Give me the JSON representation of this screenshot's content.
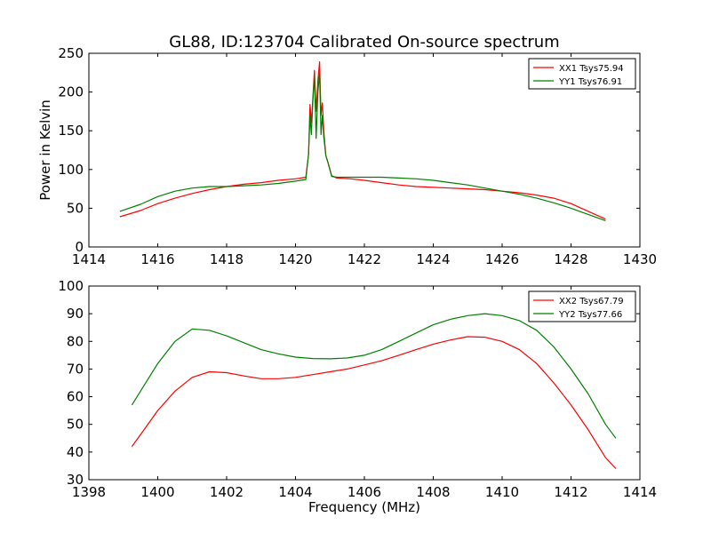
{
  "title": "GL88, ID:123704 Calibrated On-source spectrum",
  "chart_data": [
    {
      "type": "line",
      "xlabel": "",
      "ylabel": "Power in Kelvin",
      "xlim": [
        1414,
        1430
      ],
      "ylim": [
        0,
        250
      ],
      "xticks": [
        1414,
        1416,
        1418,
        1420,
        1422,
        1424,
        1426,
        1428,
        1430
      ],
      "yticks": [
        0,
        50,
        100,
        150,
        200,
        250
      ],
      "legend_position": "top-right",
      "series": [
        {
          "name": "XX1 Tsys75.94",
          "color": "#ff0000",
          "points": [
            [
              1414.9,
              39
            ],
            [
              1415.5,
              47
            ],
            [
              1416,
              56
            ],
            [
              1416.5,
              63
            ],
            [
              1417,
              69
            ],
            [
              1417.5,
              74
            ],
            [
              1418,
              78
            ],
            [
              1418.5,
              81
            ],
            [
              1419,
              83
            ],
            [
              1419.5,
              86
            ],
            [
              1420,
              88
            ],
            [
              1420.3,
              90
            ],
            [
              1420.38,
              120
            ],
            [
              1420.42,
              184
            ],
            [
              1420.46,
              160
            ],
            [
              1420.5,
              190
            ],
            [
              1420.55,
              228
            ],
            [
              1420.6,
              175
            ],
            [
              1420.65,
              215
            ],
            [
              1420.7,
              239
            ],
            [
              1420.74,
              170
            ],
            [
              1420.78,
              186
            ],
            [
              1420.82,
              150
            ],
            [
              1420.88,
              118
            ],
            [
              1420.95,
              108
            ],
            [
              1421.05,
              92
            ],
            [
              1421.2,
              89
            ],
            [
              1421.6,
              88
            ],
            [
              1422,
              86
            ],
            [
              1422.5,
              83
            ],
            [
              1423,
              80
            ],
            [
              1423.5,
              78
            ],
            [
              1424,
              77
            ],
            [
              1424.5,
              76
            ],
            [
              1425,
              75
            ],
            [
              1425.5,
              74
            ],
            [
              1426,
              72
            ],
            [
              1426.5,
              70
            ],
            [
              1427,
              67
            ],
            [
              1427.5,
              63
            ],
            [
              1428,
              56
            ],
            [
              1428.5,
              46
            ],
            [
              1429,
              36
            ]
          ]
        },
        {
          "name": "YY1 Tsys76.91",
          "color": "#008000",
          "points": [
            [
              1414.9,
              46
            ],
            [
              1415.5,
              55
            ],
            [
              1416,
              65
            ],
            [
              1416.5,
              72
            ],
            [
              1417,
              76
            ],
            [
              1417.5,
              78
            ],
            [
              1418,
              78
            ],
            [
              1418.5,
              79
            ],
            [
              1419,
              80
            ],
            [
              1419.5,
              82
            ],
            [
              1420,
              85
            ],
            [
              1420.3,
              87
            ],
            [
              1420.38,
              120
            ],
            [
              1420.42,
              170
            ],
            [
              1420.46,
              145
            ],
            [
              1420.5,
              185
            ],
            [
              1420.55,
              222
            ],
            [
              1420.6,
              140
            ],
            [
              1420.65,
              200
            ],
            [
              1420.7,
              225
            ],
            [
              1420.74,
              145
            ],
            [
              1420.78,
              170
            ],
            [
              1420.82,
              142
            ],
            [
              1420.88,
              118
            ],
            [
              1420.95,
              108
            ],
            [
              1421.05,
              91
            ],
            [
              1421.2,
              90
            ],
            [
              1421.6,
              90
            ],
            [
              1422,
              90
            ],
            [
              1422.5,
              90
            ],
            [
              1423,
              89
            ],
            [
              1423.5,
              88
            ],
            [
              1424,
              86
            ],
            [
              1424.5,
              83
            ],
            [
              1425,
              80
            ],
            [
              1425.5,
              76
            ],
            [
              1426,
              72
            ],
            [
              1426.5,
              68
            ],
            [
              1427,
              63
            ],
            [
              1427.5,
              57
            ],
            [
              1428,
              50
            ],
            [
              1428.5,
              42
            ],
            [
              1429,
              34
            ]
          ]
        }
      ]
    },
    {
      "type": "line",
      "xlabel": "Frequency (MHz)",
      "ylabel": "",
      "xlim": [
        1398,
        1414
      ],
      "ylim": [
        30,
        100
      ],
      "xticks": [
        1398,
        1400,
        1402,
        1404,
        1406,
        1408,
        1410,
        1412,
        1414
      ],
      "yticks": [
        30,
        40,
        50,
        60,
        70,
        80,
        90,
        100
      ],
      "legend_position": "top-right",
      "series": [
        {
          "name": "XX2 Tsys67.79",
          "color": "#ff0000",
          "points": [
            [
              1399.25,
              42
            ],
            [
              1399.6,
              48
            ],
            [
              1400,
              55
            ],
            [
              1400.5,
              62
            ],
            [
              1401,
              67
            ],
            [
              1401.5,
              69
            ],
            [
              1402,
              68.7
            ],
            [
              1402.5,
              67.5
            ],
            [
              1403,
              66.5
            ],
            [
              1403.5,
              66.5
            ],
            [
              1404,
              67
            ],
            [
              1404.5,
              68
            ],
            [
              1405,
              69
            ],
            [
              1405.5,
              70
            ],
            [
              1406,
              71.5
            ],
            [
              1406.5,
              73
            ],
            [
              1407,
              75
            ],
            [
              1407.5,
              77
            ],
            [
              1408,
              79
            ],
            [
              1408.5,
              80.5
            ],
            [
              1409,
              81.7
            ],
            [
              1409.5,
              81.5
            ],
            [
              1410,
              80
            ],
            [
              1410.5,
              77
            ],
            [
              1411,
              72
            ],
            [
              1411.5,
              65
            ],
            [
              1412,
              57
            ],
            [
              1412.5,
              48
            ],
            [
              1413,
              38
            ],
            [
              1413.3,
              34
            ]
          ]
        },
        {
          "name": "YY2 Tsys77.66",
          "color": "#008000",
          "points": [
            [
              1399.25,
              57
            ],
            [
              1399.6,
              64
            ],
            [
              1400,
              72
            ],
            [
              1400.5,
              80
            ],
            [
              1401,
              84.5
            ],
            [
              1401.5,
              84
            ],
            [
              1402,
              82
            ],
            [
              1402.5,
              79.5
            ],
            [
              1403,
              77
            ],
            [
              1403.5,
              75.5
            ],
            [
              1404,
              74.3
            ],
            [
              1404.5,
              73.8
            ],
            [
              1405,
              73.7
            ],
            [
              1405.5,
              74
            ],
            [
              1406,
              75
            ],
            [
              1406.5,
              77
            ],
            [
              1407,
              80
            ],
            [
              1407.5,
              83
            ],
            [
              1408,
              86
            ],
            [
              1408.5,
              88
            ],
            [
              1409,
              89.3
            ],
            [
              1409.5,
              90
            ],
            [
              1410,
              89.3
            ],
            [
              1410.5,
              87.5
            ],
            [
              1411,
              84
            ],
            [
              1411.5,
              78
            ],
            [
              1412,
              70
            ],
            [
              1412.5,
              61
            ],
            [
              1413,
              50
            ],
            [
              1413.3,
              45
            ]
          ]
        }
      ]
    }
  ]
}
